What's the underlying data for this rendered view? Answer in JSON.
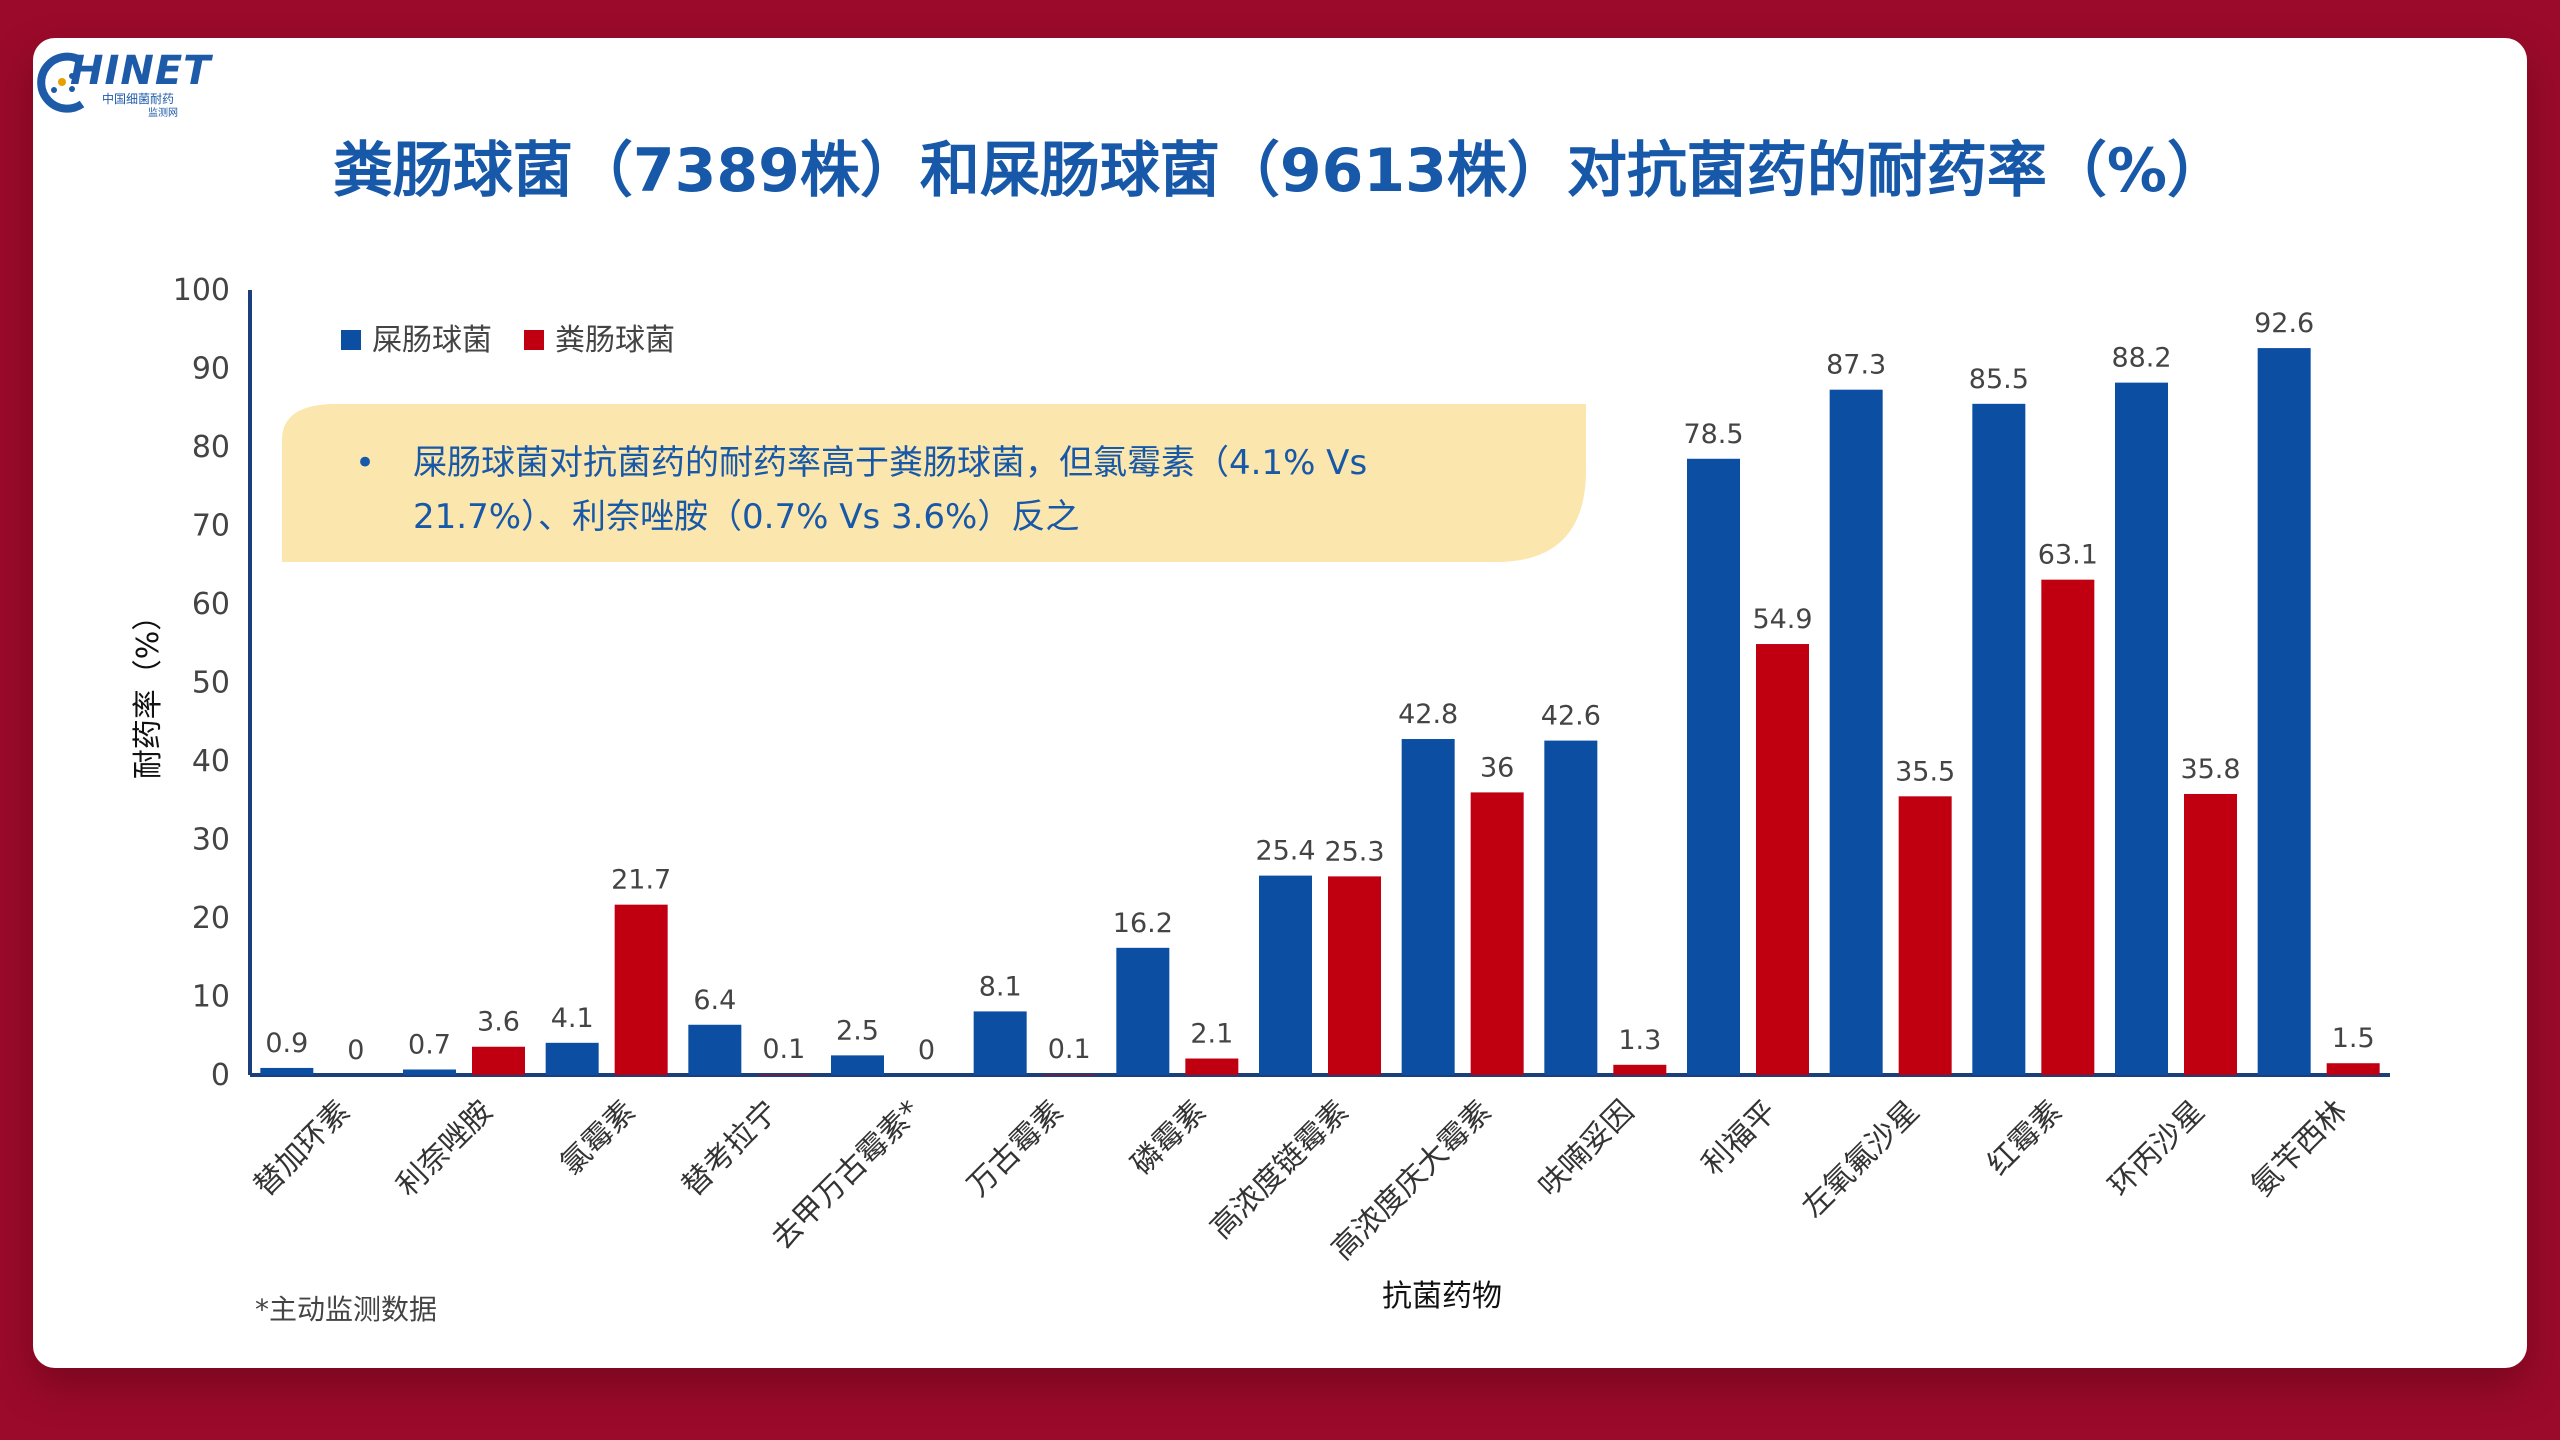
{
  "logo": {
    "text": "HINET",
    "sub1": "中国细菌耐药",
    "sub2": "监测网"
  },
  "title": "粪肠球菌（7389株）和屎肠球菌（9613株）对抗菌药的耐药率（%）",
  "callout": {
    "bullet": "•",
    "line1": "屎肠球菌对抗菌药的耐药率高于粪肠球菌，但氯霉素（4.1% Vs",
    "line2": "21.7%）、利奈唑胺（0.7% Vs 3.6%）反之"
  },
  "footnote": "*主动监测数据",
  "colors": {
    "blue": "#0b4ea2",
    "red": "#c00010",
    "callout": "#fbe6ad"
  },
  "chart_data": {
    "type": "bar",
    "title": "",
    "xlabel": "抗菌药物",
    "ylabel": "耐药率（%）",
    "ylim": [
      0,
      100
    ],
    "yticks": [
      0,
      10,
      20,
      30,
      40,
      50,
      60,
      70,
      80,
      90,
      100
    ],
    "grid": false,
    "legend": "top-left",
    "categories": [
      "替加环素",
      "利奈唑胺",
      "氯霉素",
      "替考拉宁",
      "去甲万古霉素*",
      "万古霉素",
      "磷霉素",
      "高浓度链霉素",
      "高浓度庆大霉素",
      "呋喃妥因",
      "利福平",
      "左氧氟沙星",
      "红霉素",
      "环丙沙星",
      "氨苄西林"
    ],
    "series": [
      {
        "name": "屎肠球菌",
        "color": "#0b4ea2",
        "values": [
          0.9,
          0.7,
          4.1,
          6.4,
          2.5,
          8.1,
          16.2,
          25.4,
          42.8,
          42.6,
          78.5,
          87.3,
          85.5,
          88.2,
          92.6
        ]
      },
      {
        "name": "粪肠球菌",
        "color": "#c00010",
        "values": [
          0,
          3.6,
          21.7,
          0.1,
          0,
          0.1,
          2.1,
          25.3,
          36,
          1.3,
          54.9,
          35.5,
          63.1,
          35.8,
          1.5
        ]
      }
    ]
  }
}
